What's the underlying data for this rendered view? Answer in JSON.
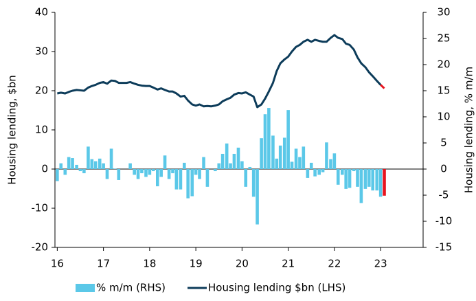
{
  "chart_data": {
    "type": "bar-line",
    "y_label": "Housing lending, $bn",
    "y2_label": "Housing lending, % m/m",
    "x": [
      16,
      16.08,
      16.17,
      16.25,
      16.33,
      16.42,
      16.5,
      16.58,
      16.67,
      16.75,
      16.83,
      16.92,
      17,
      17.08,
      17.17,
      17.25,
      17.33,
      17.42,
      17.5,
      17.58,
      17.67,
      17.75,
      17.83,
      17.92,
      18,
      18.08,
      18.17,
      18.25,
      18.33,
      18.42,
      18.5,
      18.58,
      18.67,
      18.75,
      18.83,
      18.92,
      19,
      19.08,
      19.17,
      19.25,
      19.33,
      19.42,
      19.5,
      19.58,
      19.67,
      19.75,
      19.83,
      19.92,
      20,
      20.08,
      20.17,
      20.25,
      20.33,
      20.42,
      20.5,
      20.58,
      20.67,
      20.75,
      20.83,
      20.92,
      21,
      21.08,
      21.17,
      21.25,
      21.33,
      21.42,
      21.5,
      21.58,
      21.67,
      21.75,
      21.83,
      21.92,
      22,
      22.08,
      22.17,
      22.25,
      22.33,
      22.42,
      22.5,
      22.58,
      22.67,
      22.75,
      22.83,
      22.92,
      23,
      23.08
    ],
    "xlim": [
      15.95,
      23.92
    ],
    "xticks": [
      16,
      17,
      18,
      19,
      20,
      21,
      22,
      23
    ],
    "ylim": [
      -20,
      40
    ],
    "yticks": [
      -20,
      -10,
      0,
      10,
      20,
      30,
      40
    ],
    "y2lim": [
      -15,
      30
    ],
    "y2ticks": [
      -15,
      -10,
      -5,
      0,
      5,
      10,
      15,
      20,
      25,
      30
    ],
    "series": [
      {
        "name": "% m/m (RHS)",
        "kind": "bar",
        "axis": "y2",
        "color": "#5bc8e8",
        "last_point_color": "#e8141e",
        "values": [
          -2.3,
          1.1,
          -1.1,
          2.3,
          2.1,
          0.8,
          -0.4,
          -0.8,
          4.3,
          1.9,
          1.5,
          2,
          1.1,
          -1.9,
          3.9,
          0.1,
          -2.1,
          0,
          0,
          1.1,
          -1.1,
          -1.9,
          -0.8,
          -1.5,
          -1.1,
          -0.4,
          -3.3,
          -1.5,
          2.6,
          -1.9,
          -0.8,
          -3.9,
          -3.9,
          1.2,
          -5.6,
          -5.2,
          -1.1,
          -1.9,
          2.3,
          -3.4,
          0,
          -0.4,
          1.1,
          2.9,
          4.9,
          1.1,
          2.9,
          4.1,
          1.5,
          -3.4,
          0.4,
          -5.3,
          -10.6,
          5.9,
          10.5,
          11.7,
          6.4,
          2,
          4.5,
          6,
          11.3,
          1.4,
          3.9,
          2.3,
          4.3,
          -1.7,
          1.2,
          -1.4,
          -1.1,
          -0.6,
          5.1,
          1.9,
          3,
          -3,
          -1.1,
          -3.8,
          -3.6,
          -0.4,
          -3.4,
          -6.5,
          -3.8,
          -3.4,
          -4.1,
          -4.1,
          -5.3,
          -5.1
        ]
      },
      {
        "name": "Housing lending $bn (LHS)",
        "kind": "line",
        "axis": "y",
        "color": "#0d3c5a",
        "last_point_color": "#e8141e",
        "values": [
          19.3,
          19.5,
          19.3,
          19.7,
          20,
          20.2,
          20.1,
          20,
          20.8,
          21.2,
          21.5,
          22,
          22.2,
          21.8,
          22.6,
          22.5,
          22,
          22,
          22,
          22.2,
          21.8,
          21.5,
          21.3,
          21.2,
          21.2,
          20.8,
          20.3,
          20.6,
          20.2,
          19.8,
          19.8,
          19.3,
          18.5,
          18.7,
          17.5,
          16.5,
          16.2,
          16.5,
          16,
          16.1,
          16,
          16.2,
          16.5,
          17.3,
          17.8,
          18.2,
          19,
          19.4,
          19.3,
          19.6,
          19,
          18.5,
          15.8,
          16.5,
          18,
          19.8,
          22,
          25,
          27,
          28,
          28.7,
          30,
          31.2,
          31.7,
          32.5,
          33,
          32.5,
          33,
          32.7,
          32.5,
          32.5,
          33.5,
          34.2,
          33.5,
          33.2,
          32,
          31.7,
          30.5,
          28.5,
          27,
          26,
          24.7,
          23.7,
          22.5,
          21.5,
          20.6
        ]
      }
    ]
  }
}
